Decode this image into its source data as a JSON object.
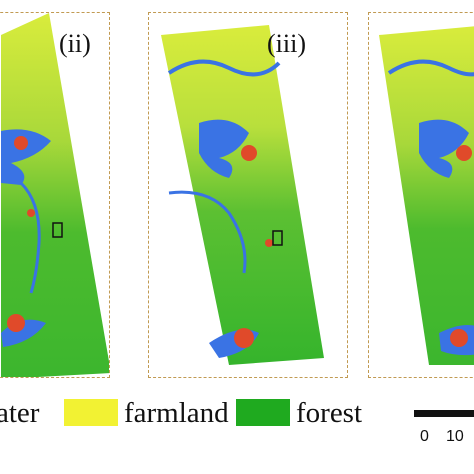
{
  "panels": [
    {
      "label": "(ii)"
    },
    {
      "label": "(iii)"
    },
    {
      "label": ""
    }
  ],
  "legend": {
    "items": [
      {
        "label": "ater",
        "color": "#2f6fe0"
      },
      {
        "label": "farmland",
        "color": "#f2f233"
      },
      {
        "label": "forest",
        "color": "#1faa1f"
      }
    ]
  },
  "scale": {
    "ticks": [
      "0",
      "10"
    ]
  },
  "colors": {
    "water": "#3a73e4",
    "farmland": "#e8ee3a",
    "forest": "#2eae2e",
    "urban": "#e04a2a",
    "frame": "#c19a52"
  }
}
